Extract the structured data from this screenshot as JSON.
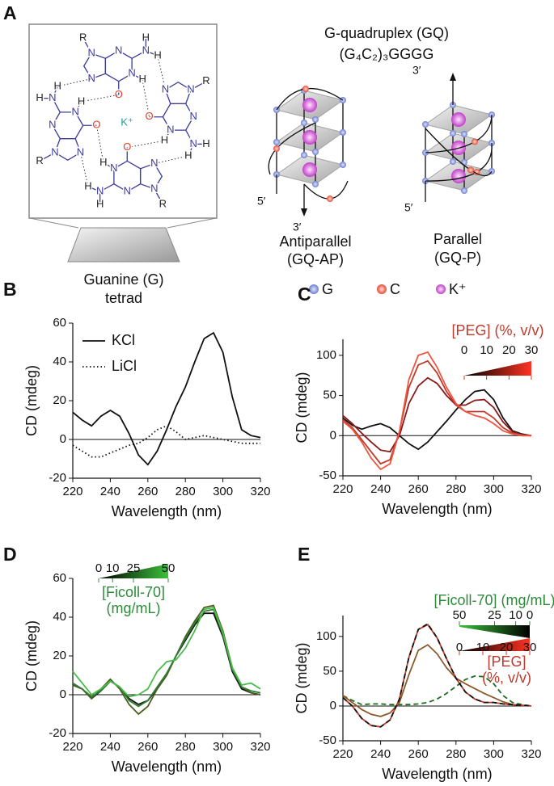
{
  "panel_a": {
    "label": "A",
    "title": "G-quadruplex (GQ)",
    "sequence": "(G₄C₂)₃GGGG",
    "tetrad_label": [
      "Guanine (G)",
      "tetrad"
    ],
    "ion": "K⁺",
    "molecules": [
      [
        "R",
        "N",
        "N",
        "N",
        "N",
        "H",
        "N",
        "H",
        "H",
        "O"
      ],
      [
        "R",
        "N",
        "N",
        "N",
        "N",
        "H",
        "N",
        "H",
        "H",
        "O"
      ],
      [
        "R",
        "N",
        "N",
        "N",
        "N",
        "H",
        "N",
        "H",
        "H",
        "O"
      ],
      [
        "R",
        "N",
        "N",
        "N",
        "N",
        "H",
        "N",
        "H",
        "H",
        "O"
      ]
    ],
    "antiparallel": [
      "Antiparallel",
      "(GQ-AP)"
    ],
    "parallel": [
      "Parallel",
      "(GQ-P)"
    ],
    "antiparallel_ends": [
      "5′",
      "3′"
    ],
    "parallel_ends": [
      "3′",
      "5′"
    ],
    "legend": [
      "G",
      "C",
      "K⁺"
    ]
  },
  "chart_data": [
    {
      "type": "line",
      "panel": "B",
      "xlabel": "Wavelength (nm)",
      "ylabel": "CD (mdeg)",
      "x": [
        220,
        225,
        230,
        235,
        240,
        245,
        250,
        255,
        260,
        265,
        270,
        275,
        280,
        285,
        290,
        295,
        300,
        305,
        310,
        315,
        320
      ],
      "series": [
        {
          "name": "KCl",
          "color": "#111111",
          "style": "solid",
          "values": [
            14,
            10,
            7,
            12,
            15,
            12,
            3,
            -8,
            -13,
            -6,
            5,
            17,
            27,
            40,
            52,
            55,
            45,
            22,
            5,
            2,
            1
          ]
        },
        {
          "name": "LiCl",
          "color": "#111111",
          "style": "dotted",
          "values": [
            -3,
            -6,
            -9,
            -9,
            -7,
            -5,
            -3,
            -2,
            1,
            5,
            7,
            4,
            0,
            1,
            2,
            1,
            0,
            -1,
            -2,
            -2,
            -2
          ]
        }
      ],
      "xlim": [
        220,
        320
      ],
      "ylim": [
        -20,
        60
      ],
      "xticks": [
        220,
        240,
        260,
        280,
        300,
        320
      ],
      "yticks": [
        -20,
        0,
        20,
        40,
        60
      ],
      "zero_line": true
    },
    {
      "type": "line",
      "panel": "C",
      "xlabel": "Wavelength (nm)",
      "ylabel": "CD (mdeg)",
      "x": [
        220,
        225,
        230,
        235,
        240,
        245,
        250,
        255,
        260,
        265,
        270,
        275,
        280,
        285,
        290,
        295,
        300,
        305,
        310,
        315,
        320
      ],
      "series": [
        {
          "color": "#111111",
          "style": "solid",
          "values": [
            22,
            13,
            8,
            12,
            15,
            10,
            0,
            -10,
            -17,
            -8,
            5,
            18,
            32,
            45,
            55,
            57,
            45,
            22,
            6,
            2,
            0
          ]
        },
        {
          "color": "#8b1a1a",
          "style": "solid",
          "values": [
            25,
            15,
            3,
            -8,
            -18,
            -20,
            0,
            40,
            62,
            72,
            65,
            50,
            38,
            38,
            44,
            45,
            35,
            17,
            5,
            1,
            0
          ]
        },
        {
          "color": "#c0392b",
          "style": "solid",
          "values": [
            20,
            10,
            -5,
            -20,
            -35,
            -30,
            5,
            60,
            88,
            93,
            78,
            55,
            38,
            30,
            30,
            30,
            22,
            10,
            3,
            1,
            0
          ]
        },
        {
          "color": "#ee5540",
          "style": "solid",
          "values": [
            18,
            8,
            -8,
            -28,
            -42,
            -35,
            5,
            70,
            100,
            104,
            85,
            60,
            40,
            30,
            25,
            22,
            15,
            6,
            2,
            0,
            0
          ]
        }
      ],
      "xlim": [
        220,
        320
      ],
      "ylim": [
        -50,
        120
      ],
      "xticks": [
        220,
        240,
        260,
        280,
        300,
        320
      ],
      "yticks": [
        -50,
        0,
        50,
        100
      ],
      "zero_line": true,
      "legends": [
        {
          "title": [
            "[PEG] (%, v/v)"
          ],
          "ticks": [
            0,
            10,
            20,
            30
          ],
          "colors": [
            "#000000",
            "#ff3322"
          ],
          "text_color": "#c0392b"
        }
      ]
    },
    {
      "type": "line",
      "panel": "D",
      "xlabel": "Wavelength (nm)",
      "ylabel": "CD (mdeg)",
      "x": [
        220,
        225,
        230,
        235,
        240,
        245,
        250,
        255,
        260,
        265,
        270,
        275,
        280,
        285,
        290,
        295,
        300,
        305,
        310,
        315,
        320
      ],
      "series": [
        {
          "color": "#111111",
          "style": "solid",
          "values": [
            5,
            3,
            -2,
            2,
            7,
            4,
            -2,
            -5,
            -3,
            3,
            10,
            20,
            28,
            36,
            42,
            42,
            30,
            12,
            3,
            1,
            0
          ]
        },
        {
          "color": "#4b5d1e",
          "style": "solid",
          "values": [
            5,
            3,
            -2,
            3,
            8,
            3,
            -5,
            -10,
            -6,
            3,
            10,
            20,
            30,
            38,
            45,
            46,
            33,
            14,
            4,
            1,
            0
          ]
        },
        {
          "color": "#2e7d32",
          "style": "solid",
          "values": [
            6,
            3,
            -1,
            2,
            7,
            4,
            -3,
            -6,
            -3,
            4,
            11,
            20,
            29,
            37,
            43,
            44,
            31,
            13,
            4,
            2,
            1
          ]
        },
        {
          "color": "#4cbb4c",
          "style": "solid",
          "values": [
            12,
            6,
            0,
            3,
            7,
            4,
            -1,
            0,
            3,
            12,
            17,
            18,
            24,
            33,
            44,
            45,
            32,
            14,
            5,
            6,
            3
          ]
        }
      ],
      "xlim": [
        220,
        320
      ],
      "ylim": [
        -20,
        60
      ],
      "xticks": [
        220,
        240,
        260,
        280,
        300,
        320
      ],
      "yticks": [
        -20,
        0,
        20,
        40,
        60
      ],
      "zero_line": true,
      "legends": [
        {
          "title": [
            "[Ficoll-70]",
            "(mg/mL)"
          ],
          "ticks": [
            0,
            10,
            25,
            50
          ],
          "colors": [
            "#000000",
            "#3cc03c"
          ],
          "text_color": "#2e8b3a"
        }
      ]
    },
    {
      "type": "line",
      "panel": "E",
      "xlabel": "Wavelength (nm)",
      "ylabel": "CD (mdeg)",
      "x": [
        220,
        225,
        230,
        235,
        240,
        245,
        250,
        255,
        260,
        265,
        270,
        275,
        280,
        285,
        290,
        295,
        300,
        305,
        310,
        315,
        320
      ],
      "series": [
        {
          "color": "#1e6b1e",
          "style": "dashed",
          "values": [
            15,
            8,
            2,
            3,
            3,
            2,
            2,
            2,
            3,
            5,
            10,
            18,
            28,
            38,
            43,
            42,
            32,
            15,
            5,
            2,
            0
          ]
        },
        {
          "color": "#8b5a2b",
          "style": "solid",
          "values": [
            15,
            5,
            -5,
            -12,
            -15,
            -10,
            5,
            45,
            80,
            88,
            75,
            55,
            40,
            32,
            25,
            18,
            12,
            6,
            2,
            1,
            0
          ]
        },
        {
          "color": "#c0392b",
          "style": "solid",
          "values": [
            12,
            0,
            -18,
            -28,
            -30,
            -20,
            10,
            70,
            110,
            117,
            98,
            68,
            40,
            20,
            10,
            5,
            5,
            3,
            2,
            1,
            0
          ]
        },
        {
          "color": "#111111",
          "style": "dashed",
          "values": [
            12,
            0,
            -18,
            -28,
            -30,
            -20,
            10,
            70,
            110,
            118,
            98,
            68,
            40,
            20,
            10,
            5,
            5,
            3,
            2,
            1,
            0
          ]
        }
      ],
      "xlim": [
        220,
        320
      ],
      "ylim": [
        -50,
        130
      ],
      "xticks": [
        220,
        240,
        260,
        280,
        300,
        320
      ],
      "yticks": [
        -50,
        0,
        50,
        100
      ],
      "zero_line": true,
      "legends": [
        {
          "title": [
            "[Ficoll-70] (mg/mL)"
          ],
          "ticks": [
            50,
            25,
            10,
            0
          ],
          "colors": [
            "#3cc03c",
            "#000000"
          ],
          "text_color": "#2e8b3a",
          "reverse": true
        },
        {
          "title": [
            "[PEG]",
            "(%, v/v)"
          ],
          "ticks": [
            0,
            10,
            20,
            30
          ],
          "colors": [
            "#000000",
            "#ff3322"
          ],
          "text_color": "#c0392b"
        }
      ]
    }
  ]
}
